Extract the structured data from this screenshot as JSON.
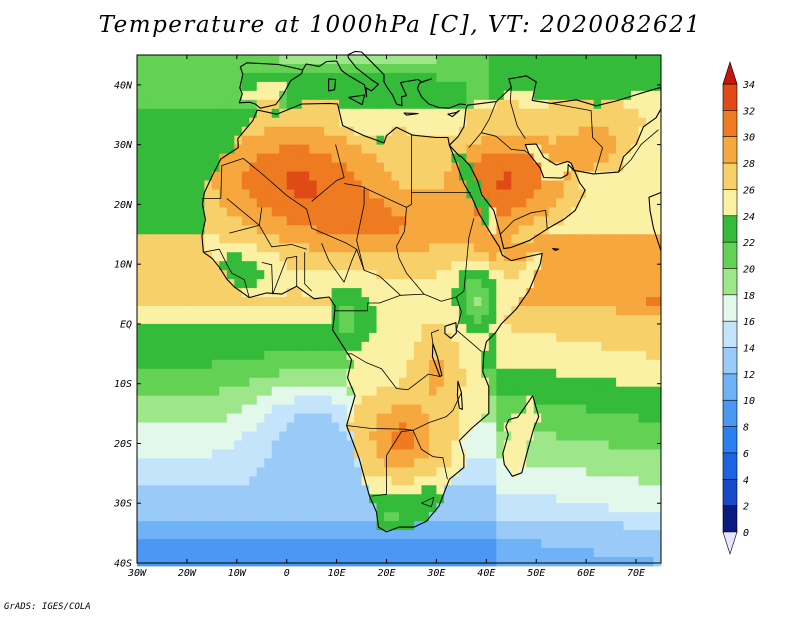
{
  "title": "Temperature at 1000hPa [C], VT: 2020082621",
  "footer": "GrADS: IGES/COLA",
  "map": {
    "region": "Africa",
    "variable": "Temperature at 1000hPa",
    "units": "C",
    "valid_time": "2020082621",
    "lon_range": [
      -30,
      75
    ],
    "lat_range": [
      -40,
      45
    ],
    "lon_ticks": [
      "30W",
      "20W",
      "10W",
      "0",
      "10E",
      "20E",
      "30E",
      "40E",
      "50E",
      "60E",
      "70E"
    ],
    "lat_ticks": [
      "40N",
      "30N",
      "20N",
      "10N",
      "EQ",
      "10S",
      "20S",
      "30S",
      "40S"
    ]
  },
  "colorbar": {
    "labels": [
      "34",
      "32",
      "30",
      "28",
      "26",
      "24",
      "22",
      "20",
      "18",
      "16",
      "14",
      "12",
      "10",
      "8",
      "6",
      "4",
      "2",
      "0"
    ],
    "colors": [
      "#ffffff"
    ]
  },
  "palette": {
    "bins": [
      {
        "max": 0,
        "color": "#e6e6ff"
      },
      {
        "max": 2,
        "color": "#0a1a80"
      },
      {
        "max": 4,
        "color": "#1648c8"
      },
      {
        "max": 6,
        "color": "#1e64e0"
      },
      {
        "max": 8,
        "color": "#2c7ff0"
      },
      {
        "max": 10,
        "color": "#4a98f4"
      },
      {
        "max": 12,
        "color": "#6fb2f7"
      },
      {
        "max": 14,
        "color": "#9acbf8"
      },
      {
        "max": 16,
        "color": "#c4e4fb"
      },
      {
        "max": 18,
        "color": "#e2f8ea"
      },
      {
        "max": 20,
        "color": "#9ee68a"
      },
      {
        "max": 22,
        "color": "#62d154"
      },
      {
        "max": 24,
        "color": "#34bb3a"
      },
      {
        "max": 26,
        "color": "#fbf1a4"
      },
      {
        "max": 28,
        "color": "#f8d06a"
      },
      {
        "max": 30,
        "color": "#f6a83e"
      },
      {
        "max": 32,
        "color": "#ee7a21"
      },
      {
        "max": 34,
        "color": "#e04a16"
      },
      {
        "max": 99,
        "color": "#c5160e"
      }
    ]
  }
}
